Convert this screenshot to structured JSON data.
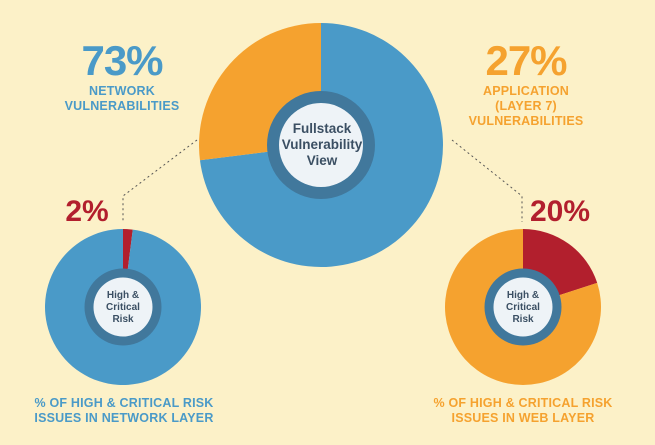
{
  "colors": {
    "background": "#fcf1c8",
    "blue": "#4a9ac8",
    "orange": "#f5a22f",
    "red": "#b21f2d",
    "hub_ring": "#41789c",
    "hub_fill": "#eef3f7",
    "hub_text": "#3b4f63"
  },
  "chart_data": [
    {
      "type": "pie",
      "center_label": [
        "Fullstack",
        "Vulnerability",
        "View"
      ],
      "slices": [
        {
          "label_value": "73%",
          "label": [
            "NETWORK",
            "VULNERABILITIES"
          ],
          "value": 73,
          "color": "#4a9ac8"
        },
        {
          "label_value": "27%",
          "label": [
            "APPLICATION",
            "(LAYER 7)",
            "VULNERABILITIES"
          ],
          "value": 27,
          "color": "#f5a22f"
        }
      ]
    },
    {
      "type": "pie",
      "center_label": [
        "High &",
        "Critical",
        "Risk"
      ],
      "caption": [
        "% OF HIGH & CRITICAL RISK",
        "ISSUES IN NETWORK LAYER"
      ],
      "slices": [
        {
          "label_value": "2%",
          "value": 2,
          "color": "#b21f2d"
        },
        {
          "value": 98,
          "color": "#4a9ac8"
        }
      ]
    },
    {
      "type": "pie",
      "center_label": [
        "High &",
        "Critical",
        "Risk"
      ],
      "caption": [
        "% OF HIGH & CRITICAL RISK",
        "ISSUES IN WEB LAYER"
      ],
      "slices": [
        {
          "label_value": "20%",
          "value": 20,
          "color": "#b21f2d"
        },
        {
          "value": 80,
          "color": "#f5a22f"
        }
      ]
    }
  ]
}
